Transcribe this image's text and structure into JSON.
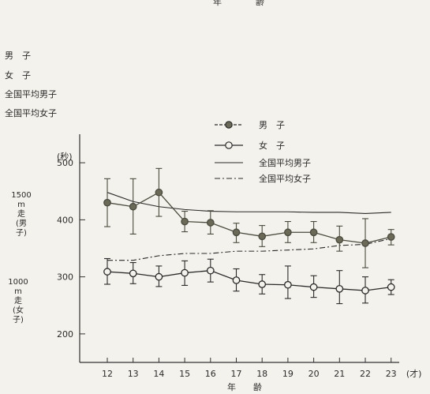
{
  "header": {
    "top_label": "年　齢"
  },
  "left_list": [
    "男　子",
    "女　子",
    "全国平均男子",
    "全国平均女子"
  ],
  "yaxis_unit": "(秒)",
  "left_labels": {
    "upper": [
      "1500",
      "m",
      "走",
      "(男",
      "子)"
    ],
    "lower": [
      "1000",
      "m",
      "走",
      "(女",
      "子)"
    ]
  },
  "chart_data": {
    "type": "line",
    "x": [
      12,
      13,
      14,
      15,
      16,
      17,
      18,
      19,
      20,
      21,
      22,
      23
    ],
    "x_tick_labels": [
      "12",
      "13",
      "14",
      "15",
      "16",
      "17",
      "18",
      "19",
      "20",
      "21",
      "22",
      "23"
    ],
    "x_unit": "(才)",
    "xlabel": "年　　齢",
    "ylabel": "(秒)",
    "ylim": [
      150,
      550
    ],
    "y_ticks": [
      200,
      300,
      400,
      500
    ],
    "legend_position": "top-right",
    "series": [
      {
        "name": "男　子",
        "style": "filled-marker-errorbar",
        "values": [
          430,
          423,
          448,
          397,
          395,
          378,
          371,
          378,
          378,
          365,
          359,
          370
        ],
        "error_low": [
          388,
          375,
          406,
          379,
          375,
          360,
          353,
          360,
          360,
          345,
          316,
          356
        ],
        "error_high": [
          472,
          472,
          490,
          415,
          416,
          394,
          390,
          397,
          397,
          389,
          402,
          383
        ],
        "color": "#4a4a3e"
      },
      {
        "name": "女　子",
        "style": "open-marker-errorbar",
        "values": [
          309,
          306,
          300,
          307,
          311,
          294,
          287,
          286,
          282,
          279,
          276,
          282
        ],
        "error_low": [
          287,
          288,
          283,
          285,
          291,
          275,
          270,
          262,
          264,
          253,
          254,
          269
        ],
        "error_high": [
          332,
          325,
          319,
          328,
          331,
          314,
          304,
          319,
          302,
          311,
          300,
          295
        ],
        "color": "#2a2a2a"
      },
      {
        "name": "全国平均男子",
        "style": "solid",
        "values": [
          448,
          432,
          423,
          418,
          415,
          414,
          414,
          414,
          413,
          413,
          411,
          413
        ],
        "color": "#2a2a2a"
      },
      {
        "name": "全国平均女子",
        "style": "dash-dot",
        "values": [
          329,
          329,
          337,
          341,
          341,
          345,
          345,
          347,
          349,
          355,
          357,
          367
        ],
        "color": "#2a2a2a"
      }
    ]
  }
}
